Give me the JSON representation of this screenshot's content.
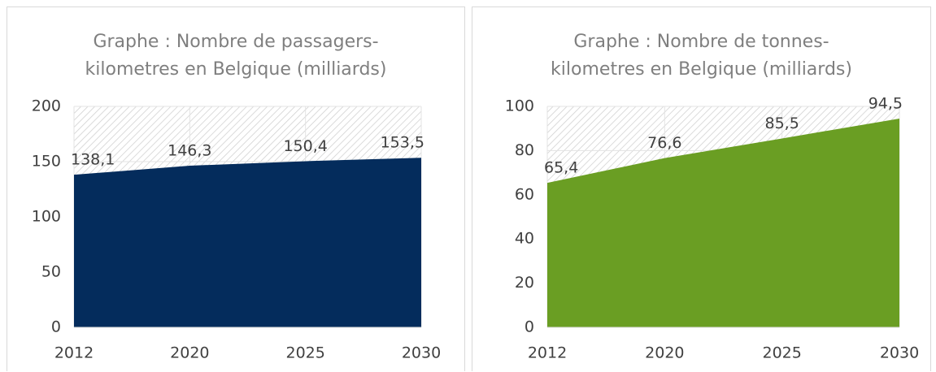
{
  "chart_data": [
    {
      "type": "area",
      "title": "Graphe : Nombre de passagers-kilometres en Belgique (milliards)",
      "categories": [
        "2012",
        "2020",
        "2025",
        "2030"
      ],
      "values": [
        138.1,
        146.3,
        150.4,
        153.5
      ],
      "value_labels": [
        "138,1",
        "146,3",
        "150,4",
        "153,5"
      ],
      "color": "#042c5c",
      "ylim": [
        0,
        200
      ],
      "yticks": [
        0,
        50,
        100,
        150,
        200
      ],
      "grid": true
    },
    {
      "type": "area",
      "title": "Graphe : Nombre de tonnes-kilometres en Belgique (milliards)",
      "categories": [
        "2012",
        "2020",
        "2025",
        "2030"
      ],
      "values": [
        65.4,
        76.6,
        85.5,
        94.5
      ],
      "value_labels": [
        "65,4",
        "76,6",
        "85,5",
        "94,5"
      ],
      "color": "#6a9e23",
      "ylim": [
        0,
        100
      ],
      "yticks": [
        0,
        20,
        40,
        60,
        80,
        100
      ],
      "grid": true
    }
  ]
}
